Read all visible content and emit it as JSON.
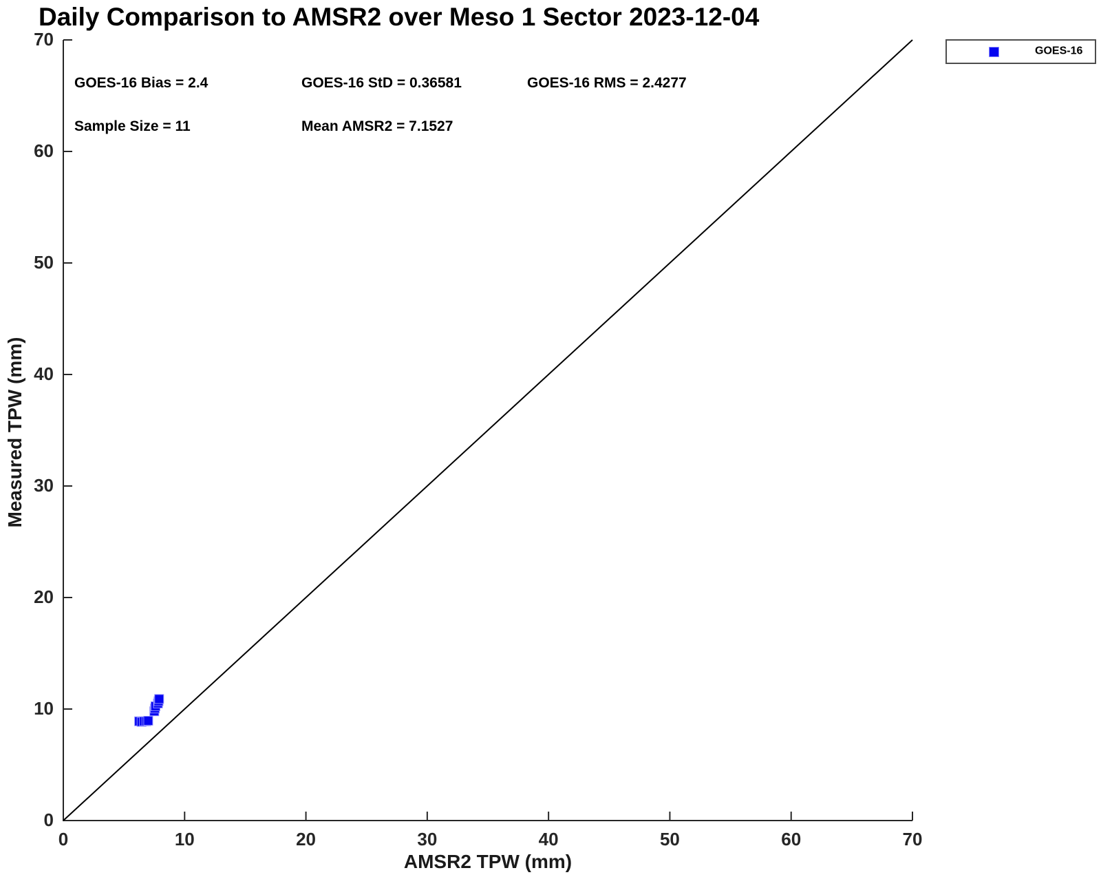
{
  "title": "Daily Comparison to AMSR2 over Meso 1 Sector 2023-12-04",
  "stats": {
    "bias": "GOES-16 Bias = 2.4",
    "std": "GOES-16 StD = 0.36581",
    "rms": "GOES-16 RMS = 2.4277",
    "sample_size": "Sample Size = 11",
    "mean_amsr2": "Mean AMSR2 = 7.1527"
  },
  "legend": {
    "label": "GOES-16",
    "position": "top-right-outside"
  },
  "chart_data": {
    "type": "scatter",
    "title": "Daily Comparison to AMSR2 over Meso 1 Sector 2023-12-04",
    "xlabel": "AMSR2 TPW (mm)",
    "ylabel": "Measured TPW (mm)",
    "xlim": [
      0,
      70
    ],
    "ylim": [
      0,
      70
    ],
    "xticks": [
      0,
      10,
      20,
      30,
      40,
      50,
      60,
      70
    ],
    "yticks": [
      0,
      10,
      20,
      30,
      40,
      50,
      60,
      70
    ],
    "grid": false,
    "axis_color": "#262626",
    "series": [
      {
        "name": "GOES-16",
        "marker": "square",
        "marker_color": "#0404f0",
        "marker_edge_color": "#8f8fff",
        "points": [
          [
            6.25,
            8.9
          ],
          [
            6.45,
            8.85
          ],
          [
            6.65,
            8.9
          ],
          [
            6.85,
            8.9
          ],
          [
            7.0,
            8.95
          ],
          [
            7.5,
            9.8
          ],
          [
            7.55,
            10.05
          ],
          [
            7.6,
            10.25
          ],
          [
            7.8,
            10.5
          ],
          [
            7.85,
            10.7
          ],
          [
            7.9,
            10.9
          ]
        ]
      }
    ],
    "reference_line": {
      "name": "one-to-one-line",
      "from": [
        0,
        0
      ],
      "to": [
        70,
        70
      ],
      "color": "#000000"
    },
    "stats_values": {
      "bias": 2.4,
      "std": 0.36581,
      "rms": 2.4277,
      "sample_size": 11,
      "mean_amsr2": 7.1527
    }
  }
}
